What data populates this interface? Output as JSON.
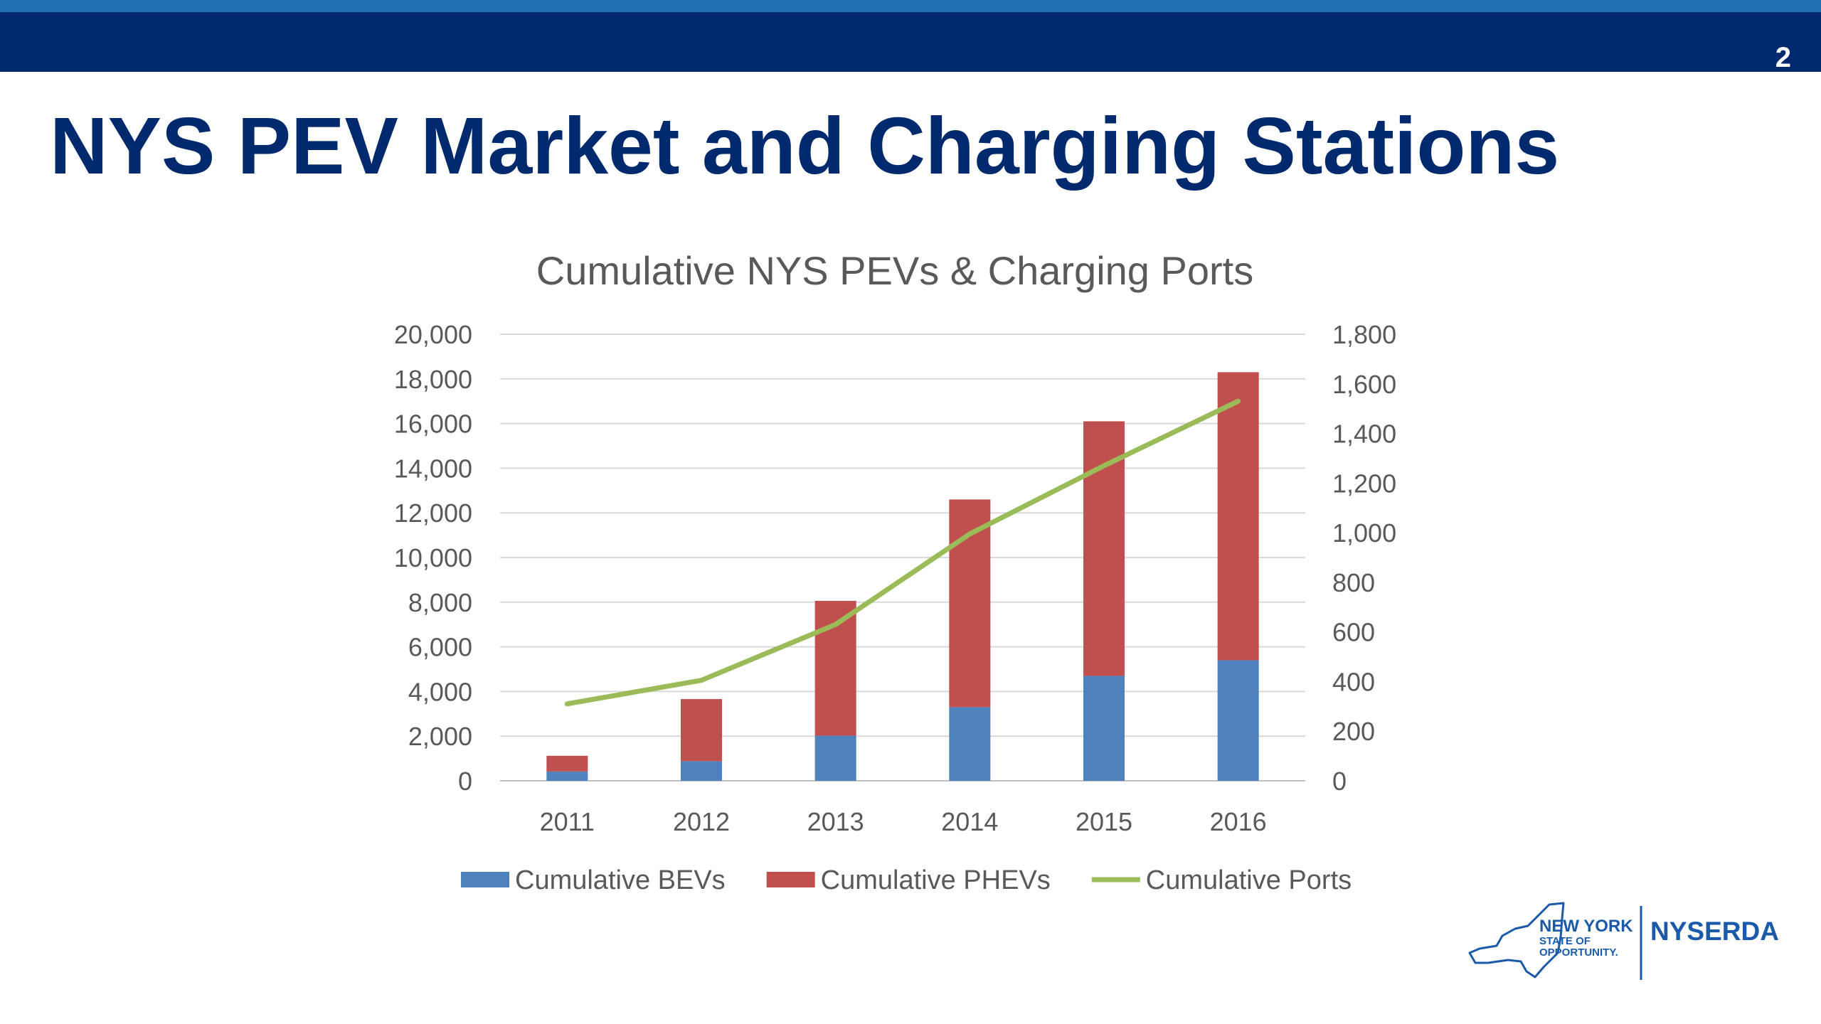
{
  "slide": {
    "page_number": "2",
    "title": "NYS PEV Market and Charging Stations"
  },
  "colors": {
    "header_navy": "#012a6e",
    "stripe_blue": "#1f6fb5",
    "bev_blue": "#4f81bd",
    "phev_red": "#c0504d",
    "ports_green": "#9bbb59"
  },
  "chart_data": {
    "type": "bar",
    "stacked": true,
    "title": "Cumulative NYS PEVs & Charging Ports",
    "categories": [
      "2011",
      "2012",
      "2013",
      "2014",
      "2015",
      "2016"
    ],
    "series": [
      {
        "name": "Cumulative BEVs",
        "type": "bar",
        "axis": "left",
        "color": "#4f81bd",
        "values": [
          420,
          880,
          2020,
          3300,
          4700,
          5400
        ]
      },
      {
        "name": "Cumulative PHEVs",
        "type": "bar",
        "axis": "left",
        "color": "#c0504d",
        "values": [
          700,
          2780,
          6040,
          9300,
          11400,
          12900
        ]
      },
      {
        "name": "Cumulative Ports",
        "type": "line",
        "axis": "right",
        "color": "#9bbb59",
        "values": [
          310,
          405,
          630,
          995,
          1270,
          1530
        ]
      }
    ],
    "y_left": {
      "min": 0,
      "max": 20000,
      "step": 2000,
      "tick_labels": [
        "0",
        "2,000",
        "4,000",
        "6,000",
        "8,000",
        "10,000",
        "12,000",
        "14,000",
        "16,000",
        "18,000",
        "20,000"
      ]
    },
    "y_right": {
      "min": 0,
      "max": 1800,
      "step": 200,
      "tick_labels": [
        "0",
        "200",
        "400",
        "600",
        "800",
        "1,000",
        "1,200",
        "1,400",
        "1,600",
        "1,800"
      ]
    },
    "grid": true,
    "legend_position": "bottom"
  },
  "logo": {
    "line1": "NEW YORK",
    "line2": "STATE OF",
    "line3": "OPPORTUNITY.",
    "org": "NYSERDA"
  }
}
